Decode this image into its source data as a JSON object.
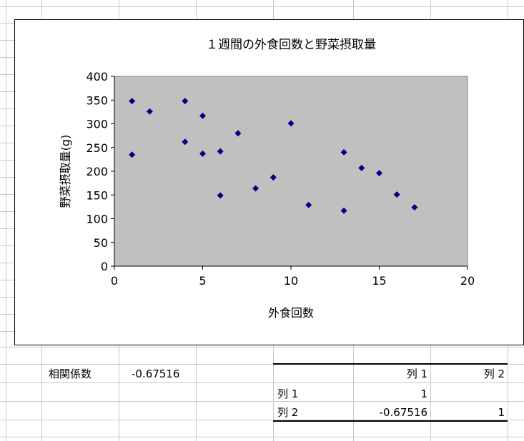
{
  "colors": {
    "plot_area": "#c0c0c0",
    "marker": "#000080",
    "gridline": "#c8c8c8",
    "border": "#000000"
  },
  "chart_data": {
    "type": "scatter",
    "title": "１週間の外食回数と野菜摂取量",
    "xlabel": "外食回数",
    "ylabel": "野菜摂取量(g)",
    "xlim": [
      0,
      20
    ],
    "ylim": [
      0,
      400
    ],
    "x_ticks": [
      "0",
      "5",
      "10",
      "15",
      "20"
    ],
    "y_ticks": [
      "0",
      "50",
      "100",
      "150",
      "200",
      "250",
      "300",
      "350",
      "400"
    ],
    "grid": false,
    "legend": "none",
    "marker": "diamond",
    "points": [
      {
        "x": 1,
        "y": 348
      },
      {
        "x": 1,
        "y": 235
      },
      {
        "x": 2,
        "y": 326
      },
      {
        "x": 4,
        "y": 348
      },
      {
        "x": 4,
        "y": 262
      },
      {
        "x": 5,
        "y": 317
      },
      {
        "x": 5,
        "y": 237
      },
      {
        "x": 6,
        "y": 242
      },
      {
        "x": 6,
        "y": 149
      },
      {
        "x": 7,
        "y": 280
      },
      {
        "x": 8,
        "y": 164
      },
      {
        "x": 9,
        "y": 187
      },
      {
        "x": 10,
        "y": 301
      },
      {
        "x": 11,
        "y": 129
      },
      {
        "x": 13,
        "y": 240
      },
      {
        "x": 13,
        "y": 117
      },
      {
        "x": 14,
        "y": 207
      },
      {
        "x": 15,
        "y": 196
      },
      {
        "x": 16,
        "y": 151
      },
      {
        "x": 17,
        "y": 124
      }
    ]
  },
  "sheet": {
    "correlation_label": "相関係数",
    "correlation_value": "-0.67516",
    "matrix": {
      "headers": [
        "列 1",
        "列 2"
      ],
      "rows": [
        {
          "label": "列 1",
          "values": [
            "1",
            ""
          ]
        },
        {
          "label": "列 2",
          "values": [
            "-0.67516",
            "1"
          ]
        }
      ]
    }
  }
}
